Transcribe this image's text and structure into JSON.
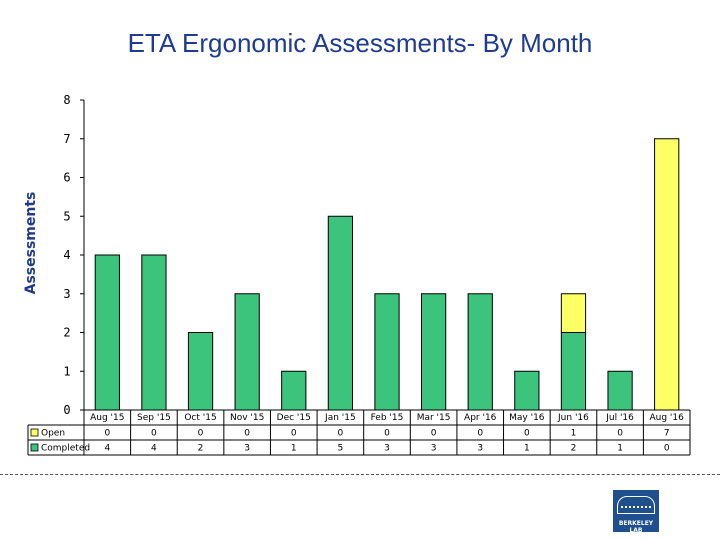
{
  "chart_data": {
    "type": "bar",
    "stacked": true,
    "title": "ETA Ergonomic Assessments- By Month",
    "xlabel": "",
    "ylabel": "Assessments",
    "ylim": [
      0,
      8
    ],
    "yticks": [
      0,
      1,
      2,
      3,
      4,
      5,
      6,
      7,
      8
    ],
    "grid": false,
    "legend": "data-table-left",
    "categories": [
      "Aug '15",
      "Sep '15",
      "Oct '15",
      "Nov '15",
      "Dec '15",
      "Jan '15",
      "Feb '15",
      "Mar '15",
      "Apr '16",
      "May '16",
      "Jun '16",
      "Jul '16",
      "Aug '16"
    ],
    "series": [
      {
        "name": "Open",
        "color": "#ffff66",
        "values": [
          0,
          0,
          0,
          0,
          0,
          0,
          0,
          0,
          0,
          0,
          1,
          0,
          7
        ]
      },
      {
        "name": "Completed",
        "color": "#3cc47c",
        "values": [
          4,
          4,
          2,
          3,
          1,
          5,
          3,
          3,
          3,
          1,
          2,
          1,
          0
        ]
      }
    ]
  },
  "colors": {
    "title": "#1f3b8f",
    "axis": "#000000",
    "bar_outline": "#000000"
  },
  "logo": {
    "text": "BERKELEY LAB"
  }
}
